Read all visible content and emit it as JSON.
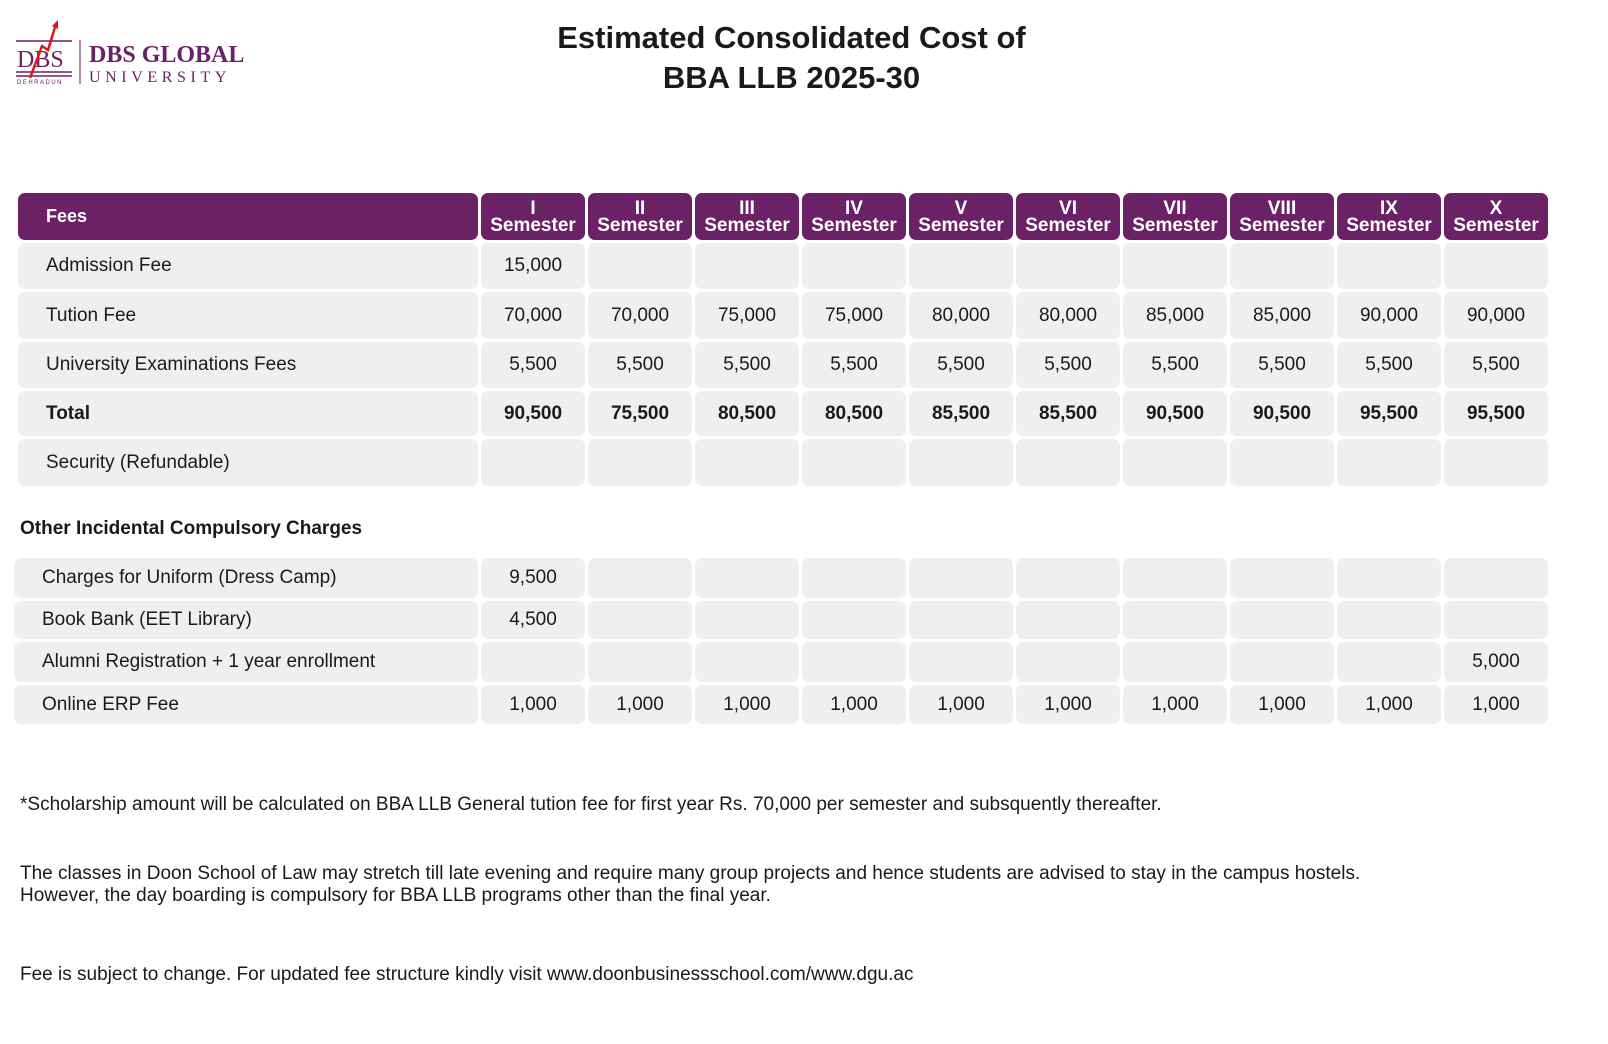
{
  "logo": {
    "mark": "DBS",
    "sub": "DEHRADUN",
    "name": "DBS GLOBAL",
    "name2": "UNIVERSITY"
  },
  "title": {
    "line1": "Estimated Consolidated Cost of",
    "line2": "BBA LLB 2025-30"
  },
  "colors": {
    "header": "#6b2166",
    "cell": "#f0eff0"
  },
  "table": {
    "header_label": "Fees",
    "semesters": [
      [
        "I",
        "Semester"
      ],
      [
        "II",
        "Semester"
      ],
      [
        "III",
        "Semester"
      ],
      [
        "IV",
        "Semester"
      ],
      [
        "V",
        "Semester"
      ],
      [
        "VI",
        "Semester"
      ],
      [
        "VII",
        "Semester"
      ],
      [
        "VIII",
        "Semester"
      ],
      [
        "IX",
        "Semester"
      ],
      [
        "X",
        "Semester"
      ]
    ],
    "rows": [
      {
        "label": "Admission Fee",
        "values": [
          "15,000",
          "",
          "",
          "",
          "",
          "",
          "",
          "",
          "",
          ""
        ]
      },
      {
        "label": "Tution Fee",
        "values": [
          "70,000",
          "70,000",
          "75,000",
          "75,000",
          "80,000",
          "80,000",
          "85,000",
          "85,000",
          "90,000",
          "90,000"
        ]
      },
      {
        "label": "University Examinations Fees",
        "values": [
          "5,500",
          "5,500",
          "5,500",
          "5,500",
          "5,500",
          "5,500",
          "5,500",
          "5,500",
          "5,500",
          "5,500"
        ]
      },
      {
        "label": "Total",
        "bold": true,
        "values": [
          "90,500",
          "75,500",
          "80,500",
          "80,500",
          "85,500",
          "85,500",
          "90,500",
          "90,500",
          "95,500",
          "95,500"
        ]
      },
      {
        "label": "Security (Refundable)",
        "values": [
          "",
          "",
          "",
          "",
          "",
          "",
          "",
          "",
          "",
          ""
        ]
      }
    ]
  },
  "other": {
    "heading": "Other Incidental Compulsory Charges",
    "rows": [
      {
        "label": "Charges for Uniform (Dress Camp)",
        "values": [
          "9,500",
          "",
          "",
          "",
          "",
          "",
          "",
          "",
          "",
          ""
        ]
      },
      {
        "label": "Book Bank (EET Library)",
        "values": [
          "4,500",
          "",
          "",
          "",
          "",
          "",
          "",
          "",
          "",
          ""
        ]
      },
      {
        "label": "Alumni Registration + 1 year enrollment",
        "values": [
          "",
          "",
          "",
          "",
          "",
          "",
          "",
          "",
          "",
          "5,000"
        ]
      },
      {
        "label": "Online ERP Fee",
        "values": [
          "1,000",
          "1,000",
          "1,000",
          "1,000",
          "1,000",
          "1,000",
          "1,000",
          "1,000",
          "1,000",
          "1,000"
        ]
      }
    ]
  },
  "notes": {
    "scholarship": "*Scholarship amount will be calculated on BBA LLB General tution fee for first year Rs. 70,000 per semester and subsquently thereafter.",
    "hostel1": "The classes in Doon School of Law may stretch till late evening and require many group projects and hence students are advised to stay in the campus hostels.",
    "hostel2": "However, the day boarding is compulsory for BBA LLB programs other than the final year.",
    "change": "Fee is subject to change. For updated fee structure kindly visit www.doonbusinessschool.com/www.dgu.ac"
  }
}
